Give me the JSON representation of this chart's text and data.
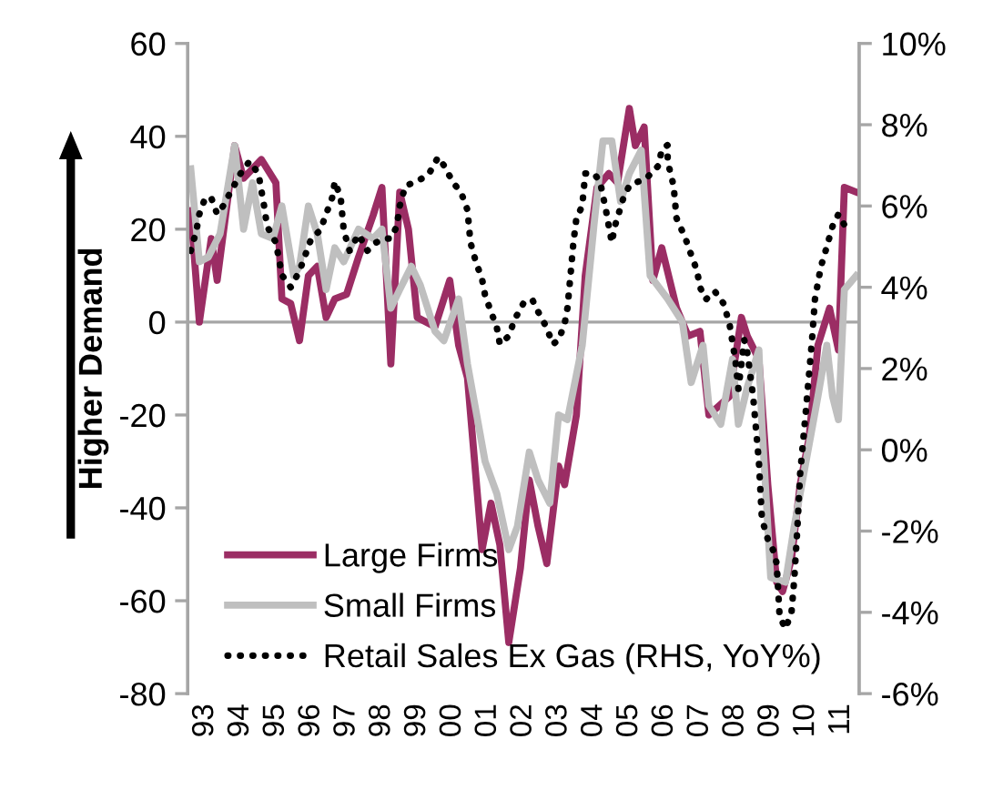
{
  "chart_data": {
    "type": "line",
    "ylabel": "Higher Demand",
    "xlim": [
      "1993-01",
      "2012-01"
    ],
    "xticks": [
      {
        "value": "1993-07",
        "label": "93"
      },
      {
        "value": "1994-07",
        "label": "94"
      },
      {
        "value": "1995-07",
        "label": "95"
      },
      {
        "value": "1996-07",
        "label": "96"
      },
      {
        "value": "1997-07",
        "label": "97"
      },
      {
        "value": "1998-07",
        "label": "98"
      },
      {
        "value": "1999-07",
        "label": "99"
      },
      {
        "value": "2000-07",
        "label": "00"
      },
      {
        "value": "2001-07",
        "label": "01"
      },
      {
        "value": "2002-07",
        "label": "02"
      },
      {
        "value": "2003-07",
        "label": "03"
      },
      {
        "value": "2004-07",
        "label": "04"
      },
      {
        "value": "2005-07",
        "label": "05"
      },
      {
        "value": "2006-07",
        "label": "06"
      },
      {
        "value": "2007-07",
        "label": "07"
      },
      {
        "value": "2008-07",
        "label": "08"
      },
      {
        "value": "2009-07",
        "label": "09"
      },
      {
        "value": "2010-07",
        "label": "10"
      },
      {
        "value": "2011-07",
        "label": "11"
      }
    ],
    "ylim": [
      -80,
      60
    ],
    "yticks": [
      -80,
      -60,
      -40,
      -20,
      0,
      20,
      40,
      60
    ],
    "y2lim": [
      -6,
      10
    ],
    "y2ticks": [
      {
        "value": -6,
        "label": "-6%"
      },
      {
        "value": -4,
        "label": "-4%"
      },
      {
        "value": -2,
        "label": "-2%"
      },
      {
        "value": 0,
        "label": "0%"
      },
      {
        "value": 2,
        "label": "2%"
      },
      {
        "value": 4,
        "label": "4%"
      },
      {
        "value": 6,
        "label": "6%"
      },
      {
        "value": 8,
        "label": "8%"
      },
      {
        "value": 10,
        "label": "10%"
      }
    ],
    "ref_lines": [
      {
        "axis": "y",
        "value": 0,
        "color": "#a6a6a6"
      }
    ],
    "grid": false,
    "legend": "bottom left",
    "series": [
      {
        "name": "Large Firms",
        "color": "#9b2d64",
        "line_style": "solid",
        "x": [
          "1993-02",
          "1993-05",
          "1993-09",
          "1993-11",
          "1994-05",
          "1994-08",
          "1995-02",
          "1995-07",
          "1995-09",
          "1995-12",
          "1996-03",
          "1996-06",
          "1996-09",
          "1996-12",
          "1997-03",
          "1997-07",
          "1997-11",
          "1998-04",
          "1998-07",
          "1998-10",
          "1999-01",
          "1999-04",
          "1999-07",
          "2000-01",
          "2000-06",
          "2000-09",
          "2000-12",
          "2001-05",
          "2001-08",
          "2001-11",
          "2002-02",
          "2002-06",
          "2002-09",
          "2002-12",
          "2003-03",
          "2003-07",
          "2003-09",
          "2004-01",
          "2004-04",
          "2004-08",
          "2004-12",
          "2005-03",
          "2005-07",
          "2005-09",
          "2005-12",
          "2006-03",
          "2006-06",
          "2006-11",
          "2007-03",
          "2007-07",
          "2007-10",
          "2008-05",
          "2008-09",
          "2008-11",
          "2009-03",
          "2009-06",
          "2009-09",
          "2009-11",
          "2010-02",
          "2010-05",
          "2010-08",
          "2010-11",
          "2011-03",
          "2011-06",
          "2011-08",
          "2011-12"
        ],
        "values": [
          24,
          0,
          18,
          9,
          38,
          31,
          35,
          30,
          5,
          4,
          -4,
          10,
          12,
          1,
          5,
          6,
          14,
          23,
          29,
          -9,
          28,
          20,
          1,
          -1,
          9,
          -5,
          -12,
          -49,
          -39,
          -48,
          -69,
          -53,
          -34,
          -44,
          -52,
          -31,
          -35,
          -20,
          10,
          29,
          32,
          30,
          46,
          38,
          42,
          9,
          16,
          3,
          -3,
          -2,
          -20,
          -16,
          1,
          -3,
          -8,
          -35,
          -56,
          -58,
          -51,
          -35,
          -25,
          -5,
          3,
          -6,
          29,
          28
        ]
      },
      {
        "name": "Small Firms",
        "color": "#bfbfbf",
        "line_style": "solid",
        "x": [
          "1993-02",
          "1993-05",
          "1993-08",
          "1993-12",
          "1994-05",
          "1994-08",
          "1994-11",
          "1995-02",
          "1995-06",
          "1995-09",
          "1996-01",
          "1996-03",
          "1996-06",
          "1996-09",
          "1996-12",
          "1997-03",
          "1997-06",
          "1997-11",
          "1998-04",
          "1998-07",
          "1998-10",
          "1999-01",
          "1999-05",
          "1999-08",
          "2000-01",
          "2000-04",
          "2000-09",
          "2000-12",
          "2001-06",
          "2001-10",
          "2002-02",
          "2002-05",
          "2002-09",
          "2002-12",
          "2003-04",
          "2003-07",
          "2003-10",
          "2004-03",
          "2004-07",
          "2004-10",
          "2005-01",
          "2005-04",
          "2005-07",
          "2005-11",
          "2006-02",
          "2006-08",
          "2007-01",
          "2007-04",
          "2007-08",
          "2007-10",
          "2008-02",
          "2008-06",
          "2008-08",
          "2008-11",
          "2009-03",
          "2009-04",
          "2009-07",
          "2009-12",
          "2010-03",
          "2010-07",
          "2010-11",
          "2011-02",
          "2011-04",
          "2011-06",
          "2011-08",
          "2011-12"
        ],
        "values": [
          33,
          13,
          14,
          19,
          38,
          20,
          30,
          19,
          18,
          25,
          10,
          12,
          25,
          19,
          7,
          16,
          13,
          20,
          18,
          20,
          3,
          7,
          12,
          8,
          -2,
          -4,
          5,
          -9,
          -30,
          -37,
          -49,
          -44,
          -28,
          -34,
          -39,
          -20,
          -21,
          -5,
          21,
          39,
          39,
          26,
          32,
          37,
          10,
          5,
          0,
          -13,
          -5,
          -18,
          -22,
          -8,
          -22,
          -14,
          -6,
          -22,
          -55,
          -56,
          -44,
          -30,
          -16,
          -5,
          -16,
          -21,
          7,
          10
        ]
      },
      {
        "name": "Retail Sales Ex Gas (RHS, YoY%)",
        "color": "#000000",
        "line_style": "dotted",
        "axis": "y2",
        "x": [
          "1993-02",
          "1993-04",
          "1993-05",
          "1993-07",
          "1993-09",
          "1993-11",
          "1994-01",
          "1994-04",
          "1994-07",
          "1994-10",
          "1995-01",
          "1995-03",
          "1995-04",
          "1995-07",
          "1995-09",
          "1995-12",
          "1996-03",
          "1996-05",
          "1996-07",
          "1996-10",
          "1996-12",
          "1997-02",
          "1997-03",
          "1997-05",
          "1997-06",
          "1997-08",
          "1997-11",
          "1998-02",
          "1998-05",
          "1998-08",
          "1998-10",
          "1998-12",
          "1999-01",
          "1999-03",
          "1999-07",
          "1999-11",
          "2000-02",
          "2000-04",
          "2000-07",
          "2000-10",
          "2000-12",
          "2001-01",
          "2001-03",
          "2001-05",
          "2001-06",
          "2001-08",
          "2001-10",
          "2001-11",
          "2002-02",
          "2002-04",
          "2002-07",
          "2002-10",
          "2002-12",
          "2003-03",
          "2003-05",
          "2003-07",
          "2003-09",
          "2003-10",
          "2003-11",
          "2003-12",
          "2004-01",
          "2004-03",
          "2004-04",
          "2004-07",
          "2004-09",
          "2004-11",
          "2004-12",
          "2005-01",
          "2005-02",
          "2005-05",
          "2005-07",
          "2005-10",
          "2006-01",
          "2006-05",
          "2006-06",
          "2006-08",
          "2006-08",
          "2006-10",
          "2006-11",
          "2007-02",
          "2007-04",
          "2007-06",
          "2007-07",
          "2007-09",
          "2007-12",
          "2008-03",
          "2008-05",
          "2008-07",
          "2008-08",
          "2008-10",
          "2008-11",
          "2009-01",
          "2009-03",
          "2009-04",
          "2009-06",
          "2009-08",
          "2009-09",
          "2009-10",
          "2009-12",
          "2010-02",
          "2010-03",
          "2010-04",
          "2010-05",
          "2010-07",
          "2010-09",
          "2010-10",
          "2010-12",
          "2011-02",
          "2011-04",
          "2011-06",
          "2011-09"
        ],
        "values": [
          4.9,
          5.4,
          5.8,
          6.2,
          6.2,
          5.8,
          6.0,
          6.4,
          6.8,
          7.1,
          6.8,
          6.0,
          5.5,
          5.1,
          4.3,
          4.0,
          4.4,
          4.8,
          5.2,
          5.4,
          5.8,
          6.2,
          6.6,
          6.2,
          5.4,
          4.9,
          5.3,
          4.9,
          5.1,
          5.2,
          5.2,
          5.5,
          6.0,
          6.5,
          6.6,
          6.8,
          7.2,
          7.0,
          6.6,
          6.3,
          5.9,
          5.1,
          4.6,
          4.2,
          3.8,
          3.4,
          3.0,
          2.6,
          2.8,
          3.2,
          3.6,
          3.7,
          3.4,
          3.0,
          2.6,
          2.7,
          3.1,
          3.5,
          4.3,
          5.1,
          5.7,
          6.0,
          6.8,
          6.8,
          6.6,
          5.9,
          5.5,
          5.1,
          5.5,
          6.2,
          6.5,
          6.6,
          6.7,
          7.0,
          7.4,
          7.5,
          7.1,
          6.5,
          5.7,
          5.2,
          4.8,
          4.4,
          4.0,
          3.7,
          3.9,
          3.6,
          3.1,
          2.2,
          1.5,
          2.7,
          2.4,
          1.3,
          -0.3,
          -1.7,
          -2.2,
          -2.5,
          -2.8,
          -4.1,
          -4.4,
          -4.0,
          -3.2,
          -2.0,
          -0.6,
          1.0,
          2.7,
          3.7,
          4.5,
          5.0,
          5.5,
          5.8,
          5.4
        ]
      }
    ]
  }
}
